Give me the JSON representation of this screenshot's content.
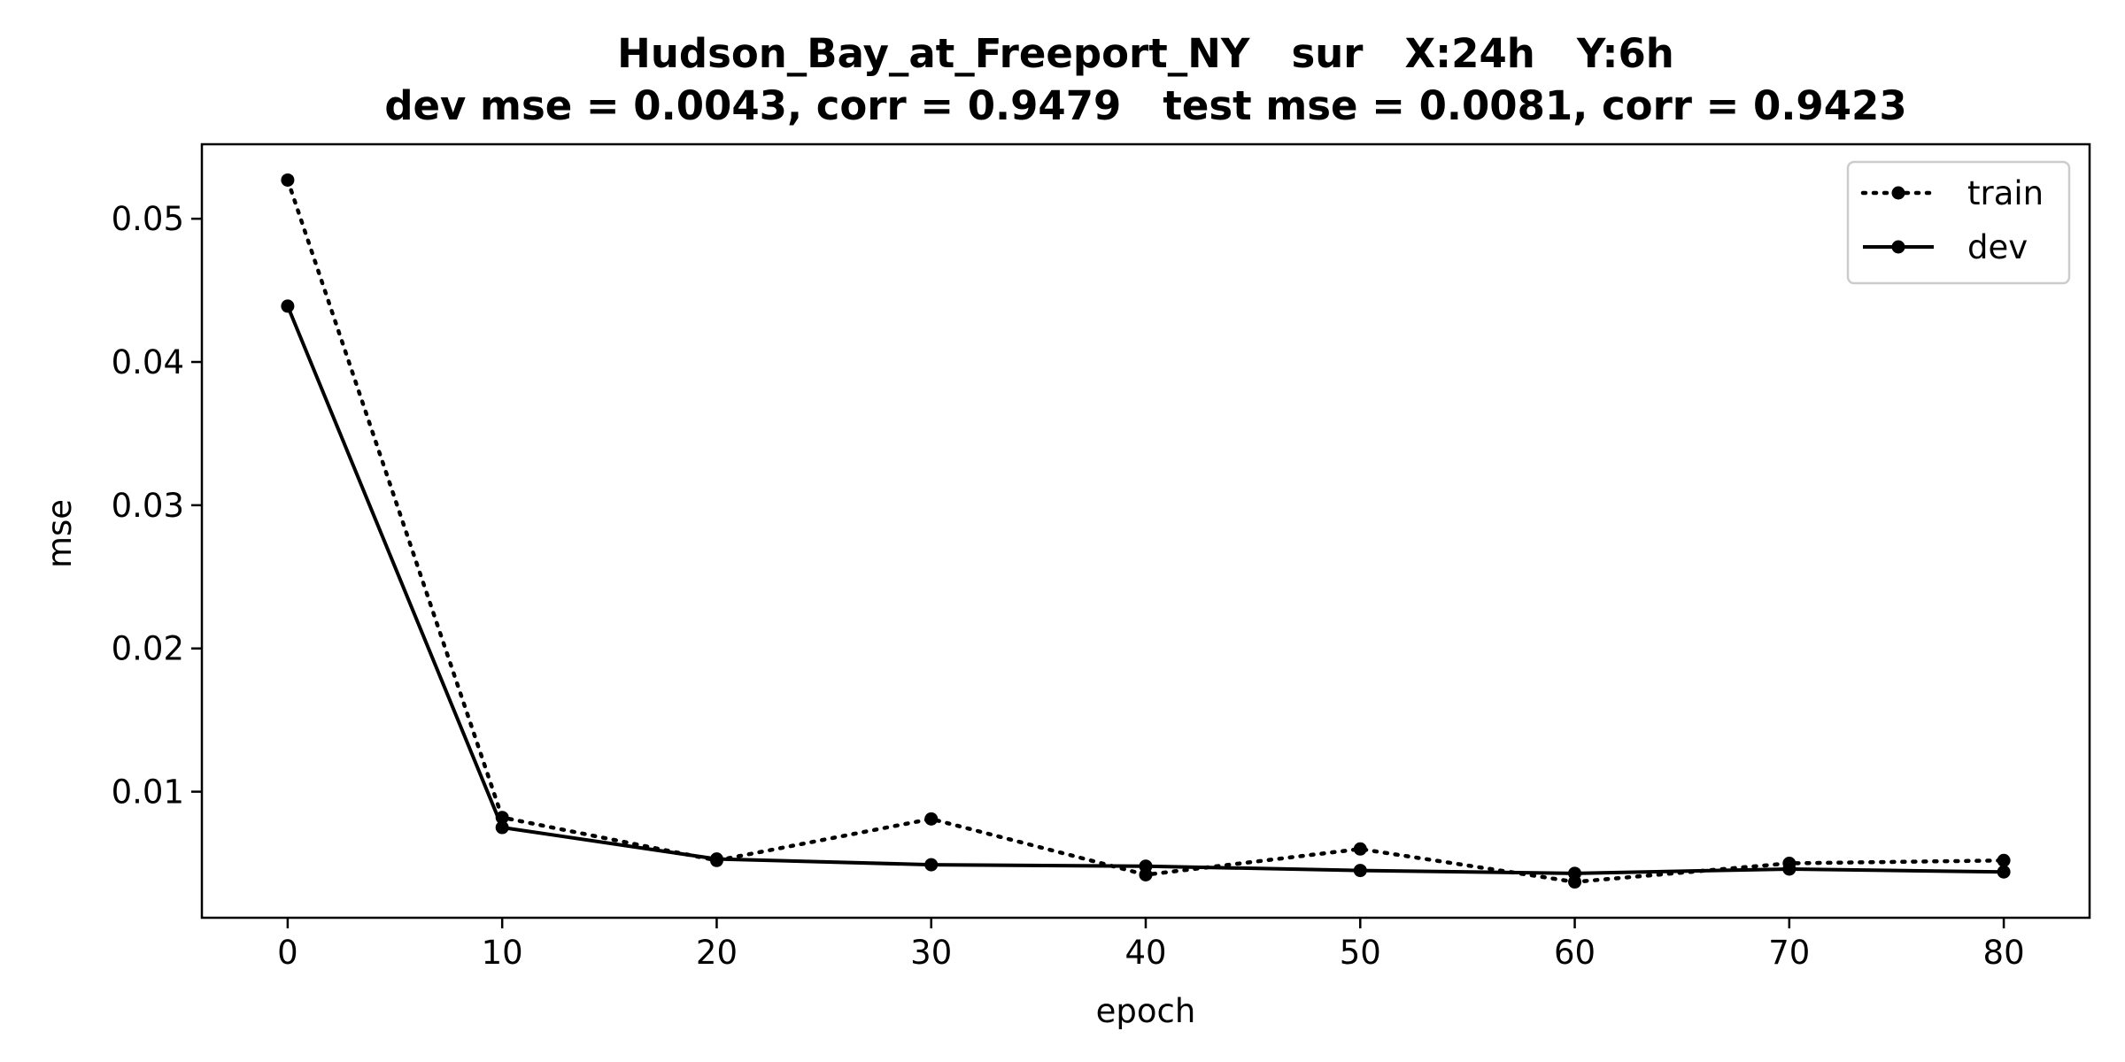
{
  "chart_data": {
    "type": "line",
    "title": "Hudson_Bay_at_Freeport_NY   sur   X:24h   Y:6h",
    "subtitle": "dev mse = 0.0043, corr = 0.9479   test mse = 0.0081, corr = 0.9423",
    "xlabel": "epoch",
    "ylabel": "mse",
    "xlim": [
      -4,
      84
    ],
    "ylim": [
      0.0012,
      0.0552
    ],
    "xticks": [
      0,
      10,
      20,
      30,
      40,
      50,
      60,
      70,
      80
    ],
    "xtick_labels": [
      "0",
      "10",
      "20",
      "30",
      "40",
      "50",
      "60",
      "70",
      "80"
    ],
    "yticks": [
      0.01,
      0.02,
      0.03,
      0.04,
      0.05
    ],
    "ytick_labels": [
      "0.01",
      "0.02",
      "0.03",
      "0.04",
      "0.05"
    ],
    "grid": false,
    "legend_position": "top-right",
    "x": [
      0,
      10,
      20,
      30,
      40,
      50,
      60,
      70,
      80
    ],
    "series": [
      {
        "name": "train",
        "style": "dotted",
        "color": "#000000",
        "values": [
          0.0527,
          0.0082,
          0.0052,
          0.0081,
          0.0042,
          0.006,
          0.0037,
          0.005,
          0.0052
        ]
      },
      {
        "name": "dev",
        "style": "solid",
        "color": "#000000",
        "values": [
          0.0439,
          0.0075,
          0.0053,
          0.0049,
          0.0048,
          0.0045,
          0.0043,
          0.0046,
          0.0044
        ]
      }
    ]
  }
}
